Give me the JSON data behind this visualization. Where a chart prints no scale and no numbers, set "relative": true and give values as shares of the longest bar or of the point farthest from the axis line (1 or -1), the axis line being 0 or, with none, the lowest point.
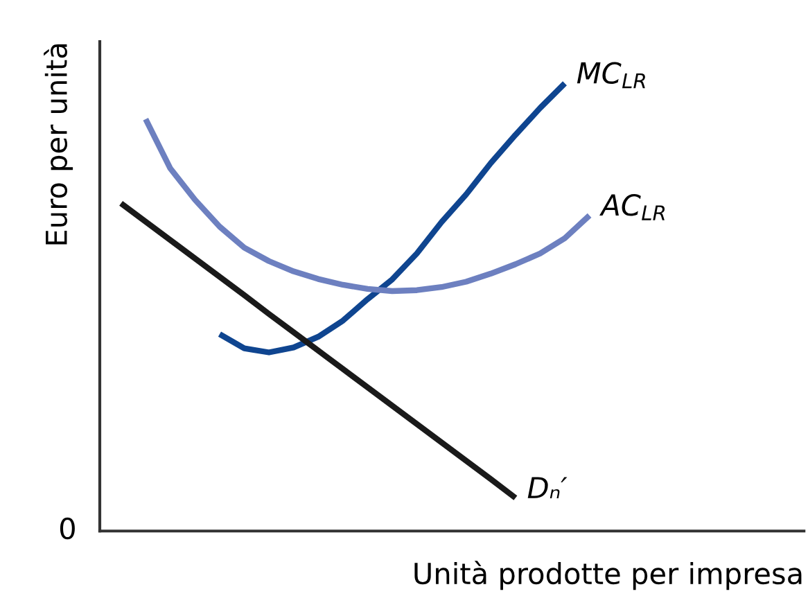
{
  "chart_data": {
    "type": "line",
    "relative": true,
    "xlabel": "Unità prodotte per impresa",
    "ylabel": "Euro per unità",
    "marker": "none",
    "line_style": "solid",
    "annotations": [
      "0"
    ],
    "categories": [
      null,
      null,
      null,
      null,
      null,
      null,
      null,
      null,
      null,
      null,
      null,
      null,
      null,
      null,
      null,
      null,
      null,
      null,
      null,
      null,
      null
    ],
    "series": [
      {
        "name": "MC$_{LR}$",
        "color": "#0f4590",
        "values": [
          null,
          null,
          null,
          null,
          0.44,
          0.408,
          0.399,
          0.41,
          0.434,
          0.47,
          0.518,
          0.562,
          0.62,
          0.69,
          0.752,
          0.822,
          0.885,
          0.945,
          1.0,
          null,
          null
        ]
      },
      {
        "name": "AC$_{LR}$",
        "color": "#6d80c0",
        "values": [
          null,
          0.92,
          0.81,
          0.74,
          0.68,
          0.633,
          0.603,
          0.58,
          0.563,
          0.55,
          0.541,
          0.536,
          0.538,
          0.545,
          0.557,
          0.575,
          0.596,
          0.62,
          0.654,
          0.705,
          null
        ]
      },
      {
        "name": "Dₙ′",
        "color": "#1a1a1a",
        "values": [
          0.732,
          0.691,
          0.65,
          0.609,
          0.568,
          0.527,
          0.485,
          0.444,
          0.403,
          0.362,
          0.321,
          0.28,
          0.239,
          0.198,
          0.157,
          0.116,
          0.074,
          null,
          null,
          null,
          null
        ]
      }
    ]
  }
}
